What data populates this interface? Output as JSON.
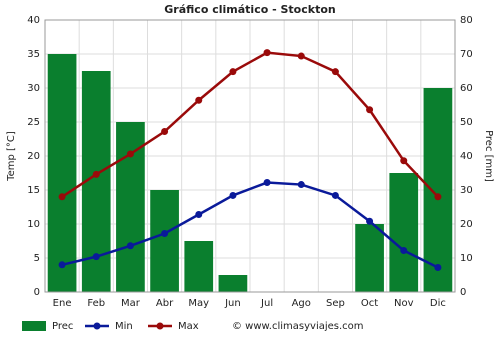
{
  "chart_data": {
    "type": "bar",
    "title": "Gráfico climático - Stockton",
    "y_label": "Temp [°C]",
    "y2_label": "Prec [mm]",
    "categories": [
      "Ene",
      "Feb",
      "Mar",
      "Abr",
      "May",
      "Jun",
      "Jul",
      "Ago",
      "Sep",
      "Oct",
      "Nov",
      "Dic"
    ],
    "series": [
      {
        "name": "Prec",
        "type": "bar",
        "axis": "y2",
        "color": "#0a7f2e",
        "values": [
          70,
          65,
          50,
          30,
          15,
          5,
          0,
          0,
          0,
          20,
          35,
          60
        ]
      },
      {
        "name": "Min",
        "type": "line",
        "color": "#0a1a9a",
        "values": [
          4,
          5.2,
          6.8,
          8.6,
          11.4,
          14.2,
          16.1,
          15.8,
          14.2,
          10.4,
          6.1,
          3.6
        ]
      },
      {
        "name": "Max",
        "type": "line",
        "color": "#9a0a0a",
        "values": [
          14,
          17.3,
          20.3,
          23.6,
          28.2,
          32.4,
          35.2,
          34.7,
          32.4,
          26.8,
          19.3,
          14
        ]
      }
    ],
    "ylim": [
      0,
      40
    ],
    "yticks": [
      0,
      5,
      10,
      15,
      20,
      25,
      30,
      35,
      40
    ],
    "y2lim": [
      0,
      80
    ],
    "y2ticks": [
      0,
      10,
      20,
      30,
      40,
      50,
      60,
      70,
      80
    ],
    "grid": true,
    "legend": "bottom",
    "source": "© www.climasyviajes.com"
  }
}
